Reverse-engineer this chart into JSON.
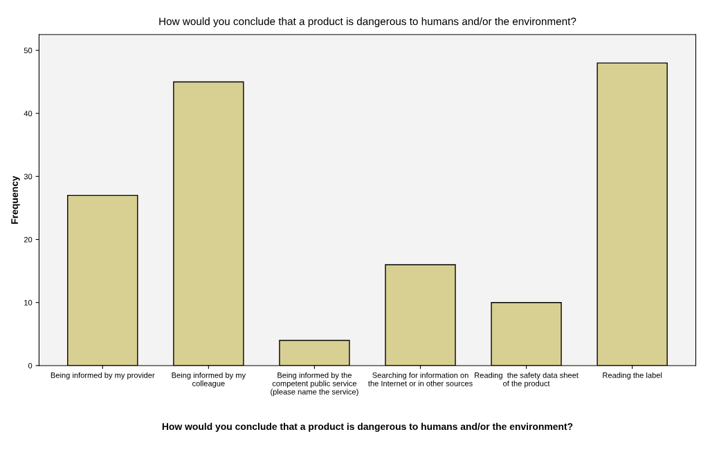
{
  "chart_data": {
    "type": "bar",
    "title": "How would you conclude that a product is dangerous to humans and/or the environment?",
    "xlabel": "How would you conclude that a product is dangerous to humans and/or the environment?",
    "ylabel": "Frequency",
    "categories": [
      "Being informed by my provider",
      "Being informed by my\ncolleague",
      "Being informed by the\ncompetent public service\n(please name the service)",
      "Searching for information on\nthe Internet or in other sources",
      "Reading  the safety data sheet\nof the product",
      "Reading the label"
    ],
    "values": [
      27,
      45,
      4,
      16,
      10,
      48
    ],
    "color": "#d8d093",
    "ylim": [
      0,
      52.5
    ],
    "yticks": [
      0,
      10,
      20,
      30,
      40,
      50
    ],
    "grid": false,
    "legend": false
  }
}
